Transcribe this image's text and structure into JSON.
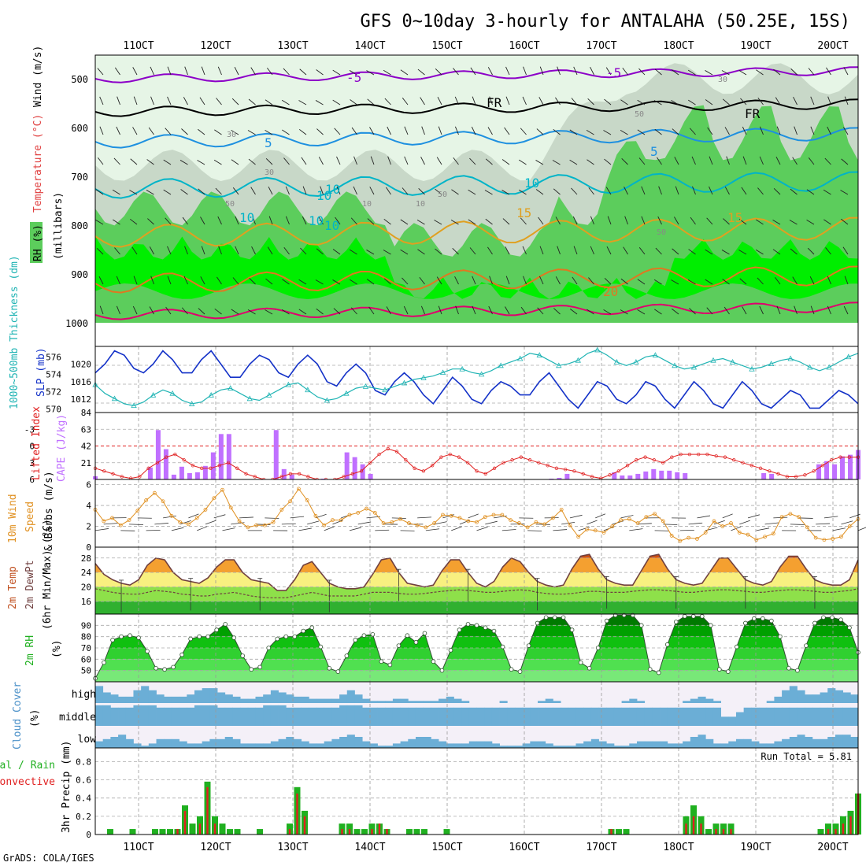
{
  "title": "GFS 0~10day 3-hourly for ANTALAHA (50.25E, 15S)",
  "footer": "GrADS: COLA/IGES",
  "run_total": "Run Total = 5.81",
  "date_ticks": [
    "11OCT",
    "12OCT",
    "13OCT",
    "14OCT",
    "15OCT",
    "16OCT",
    "17OCT",
    "18OCT",
    "19OCT",
    "20OCT"
  ],
  "colors": {
    "rh_light": "#e6f5e6",
    "rh_mid": "#c8d8c8",
    "rh_green": "#5ccd5c",
    "rh_bright": "#00ee00",
    "temp_m5": "#8c00c8",
    "temp_0": "#000000",
    "temp_5": "#1e90e0",
    "temp_10": "#00b4c8",
    "temp_15": "#e0a020",
    "temp_20": "#e07820",
    "temp_25": "#e0006e",
    "slp": "#1432c8",
    "thickness": "#20b4b4",
    "cape": "#c070ff",
    "lifted": "#e02020",
    "wind10m": "#e09020",
    "cloud": "#6baed6",
    "cloud_clear": "#e8e8e8",
    "precip_total": "#20b020",
    "precip_conv": "#e02020"
  },
  "panels": {
    "upper": {
      "ylabels": {
        "rh": "RH (%)",
        "temp": "Temperature (°C)",
        "wind": "Wind (m/s)",
        "unit": "(millibars)"
      },
      "pressure_ticks": [
        "500",
        "600",
        "700",
        "800",
        "900",
        "1000"
      ],
      "contour_labels": [
        "-5",
        "-5",
        "FR",
        "FR",
        "5",
        "5",
        "10",
        "10",
        "15",
        "15",
        "20",
        "30",
        "30",
        "50",
        "50",
        "10",
        "10",
        "10",
        "10",
        "30",
        "50",
        "50",
        "10",
        "10"
      ]
    },
    "thickness_slp": {
      "ylabel_left": "1000~500mb Thickness (dm)",
      "ylabel_right": "SLP (mb)",
      "left_ticks": [
        "576",
        "574",
        "572",
        "570"
      ],
      "right_ticks": [
        "1020",
        "1016",
        "1012"
      ]
    },
    "cape_li": {
      "ylabel_left": "Lifted Index",
      "ylabel_right": "CAPE (J/kg)",
      "li_ticks": [
        "-3",
        "0",
        "3",
        "6"
      ],
      "cape_ticks": [
        "84",
        "63",
        "42",
        "21"
      ]
    },
    "wind10m": {
      "ylabel": "10m Wind Speed & Barbs (m/s)",
      "ticks": [
        "6",
        "4",
        "2",
        "0"
      ]
    },
    "temp2m": {
      "ylabel": "2m Temp 2m DewPt (6hr Min/Max) (°C)",
      "ticks": [
        "28",
        "24",
        "20",
        "16"
      ]
    },
    "rh2m": {
      "ylabel": "2m RH (%)",
      "ticks": [
        "90",
        "80",
        "70",
        "60",
        "50"
      ]
    },
    "cloud": {
      "ylabel": "Cloud Cover (%)",
      "levels": [
        "high",
        "middle",
        "low"
      ]
    },
    "precip": {
      "ylabel_a": "3hr Precip (mm)",
      "ylabel_b": "Total / Rain",
      "ylabel_c": "Convective",
      "ticks": [
        "0.8",
        "0.6",
        "0.4",
        "0.2",
        "0"
      ]
    }
  },
  "chart_data": {
    "type": "meteogram",
    "time_start": "10OCT 12Z",
    "time_step_hours": 3,
    "slp_mb": [
      1018,
      1020,
      1023,
      1022,
      1019,
      1018,
      1020,
      1023,
      1021,
      1018,
      1018,
      1021,
      1023,
      1020,
      1017,
      1017,
      1020,
      1022,
      1021,
      1018,
      1017,
      1020,
      1022,
      1020,
      1016,
      1015,
      1018,
      1020,
      1018,
      1014,
      1013,
      1016,
      1018,
      1016,
      1013,
      1011,
      1014,
      1017,
      1015,
      1012,
      1011,
      1014,
      1016,
      1015,
      1013,
      1013,
      1016,
      1018,
      1015,
      1012,
      1010,
      1013,
      1016,
      1015,
      1012,
      1011,
      1013,
      1016,
      1015,
      1012,
      1010,
      1013,
      1016,
      1014,
      1011,
      1010,
      1013,
      1016,
      1014,
      1011,
      1010,
      1012,
      1014,
      1013,
      1010,
      1010,
      1012,
      1014,
      1013,
      1011
    ],
    "thickness_dm": [
      572.8,
      571.8,
      571.2,
      570.6,
      570.4,
      570.8,
      571.6,
      572.2,
      571.8,
      571.0,
      570.6,
      570.8,
      571.6,
      572.2,
      572.4,
      571.8,
      571.2,
      571.0,
      571.6,
      572.2,
      572.8,
      573.0,
      572.2,
      571.4,
      571.0,
      571.2,
      571.8,
      572.4,
      572.6,
      572.4,
      572.2,
      572.6,
      573.0,
      573.4,
      573.6,
      573.8,
      574.2,
      574.6,
      574.6,
      574.2,
      574.0,
      574.4,
      575.0,
      575.4,
      575.8,
      576.4,
      576.2,
      575.6,
      575.0,
      575.2,
      575.6,
      576.4,
      576.8,
      576.2,
      575.4,
      575.0,
      575.4,
      576.0,
      576.2,
      575.6,
      575.0,
      574.6,
      574.8,
      575.2,
      575.6,
      575.8,
      575.4,
      575.0,
      574.6,
      574.8,
      575.2,
      575.6,
      575.8,
      575.4,
      574.8,
      574.4,
      574.8,
      575.4,
      576.0,
      576.4
    ],
    "cape_jkg": [
      4,
      0,
      0,
      0,
      0,
      0,
      0,
      15,
      62,
      38,
      6,
      16,
      8,
      9,
      17,
      34,
      57,
      57,
      0,
      0,
      0,
      0,
      0,
      62,
      13,
      6,
      0,
      0,
      0,
      1,
      0,
      0,
      34,
      28,
      19,
      7,
      0,
      0,
      0,
      0,
      0,
      0,
      0,
      0,
      0,
      0,
      0,
      0,
      0,
      0,
      0,
      0,
      0,
      0,
      0,
      0,
      0,
      0,
      1,
      2,
      7,
      0,
      0,
      0,
      0,
      0,
      9,
      5,
      5,
      7,
      10,
      13,
      11,
      11,
      9,
      8,
      0,
      0,
      0,
      0,
      0,
      0,
      0,
      0,
      0,
      8,
      7,
      0,
      0,
      0,
      0,
      0,
      19,
      23,
      19,
      29,
      31,
      37
    ],
    "lifted_index": [
      4,
      4.5,
      5,
      5.5,
      5.8,
      5.5,
      4,
      3,
      2,
      1.5,
      2.5,
      3.5,
      4,
      4,
      3.5,
      3,
      4,
      5,
      5.5,
      6,
      6,
      5.5,
      5,
      5,
      5.5,
      6,
      6,
      6,
      5.5,
      5,
      4.5,
      3,
      1.5,
      0.5,
      1,
      2.5,
      4,
      4.5,
      3.5,
      2,
      1.5,
      2,
      3,
      4.5,
      5,
      4,
      3,
      2.5,
      2,
      2.5,
      3,
      3.5,
      4,
      4.2,
      4.5,
      5,
      5.5,
      5.8,
      5.2,
      4.5,
      3.5,
      2.5,
      2,
      2.5,
      3,
      2,
      1.5,
      1.5,
      1.5,
      1.5,
      1.8,
      2,
      2.5,
      3,
      3.5,
      4,
      4.5,
      5,
      5.5,
      5.5,
      5.2,
      4.5,
      3.5,
      2.5,
      2,
      2,
      2
    ],
    "wind10m_ms": [
      3.6,
      2.5,
      2.8,
      2.1,
      2.6,
      3.5,
      4.5,
      5.2,
      4.4,
      3.0,
      2.4,
      2.2,
      2.8,
      3.6,
      4.7,
      5.5,
      3.8,
      2.5,
      1.9,
      2.1,
      2.1,
      2.4,
      3.6,
      4.4,
      5.6,
      4.5,
      3.0,
      2.1,
      2.6,
      2.6,
      3.1,
      3.3,
      3.7,
      3.3,
      2.3,
      2.4,
      2.7,
      2.3,
      2.1,
      1.9,
      2.3,
      3.1,
      3.0,
      2.8,
      2.5,
      2.4,
      2.9,
      3.1,
      3.1,
      2.6,
      2.3,
      1.9,
      2.4,
      2.2,
      2.8,
      3.6,
      2.1,
      1.0,
      1.7,
      1.6,
      1.4,
      2.0,
      2.6,
      2.7,
      2.3,
      2.9,
      3.2,
      2.5,
      1.1,
      0.6,
      0.9,
      0.8,
      1.4,
      2.5,
      2.0,
      2.3,
      1.4,
      1.2,
      0.7,
      1.0,
      1.3,
      2.9,
      3.2,
      2.9,
      1.9,
      0.9,
      0.7,
      0.8,
      1.0,
      2.0,
      2.7
    ],
    "temp2m_c": [
      26.5,
      23.5,
      22,
      21,
      20.5,
      22,
      26,
      28,
      27.5,
      24,
      22,
      21.5,
      21,
      22.5,
      25.5,
      27.5,
      27.5,
      24,
      22,
      21.5,
      21,
      19,
      19,
      22,
      26,
      27,
      24,
      21,
      20,
      19.5,
      19.5,
      20,
      23.5,
      27.5,
      28,
      24,
      21,
      20.5,
      20,
      20.5,
      24.5,
      27.5,
      27.5,
      24,
      21,
      20,
      21.5,
      25.5,
      28,
      27,
      24,
      21.5,
      20.5,
      20,
      20.5,
      25,
      28.5,
      29,
      25,
      22,
      21,
      20.5,
      20.5,
      24.5,
      28.5,
      29,
      25,
      22,
      21,
      20.5,
      21,
      24.5,
      28,
      28,
      25,
      22,
      21,
      20.5,
      21.5,
      25.5,
      28.5,
      28.5,
      25,
      22,
      21,
      20.5,
      20.5,
      22,
      27.5
    ],
    "dewpt2m_c": [
      19.5,
      19,
      18.5,
      18.2,
      18,
      18,
      18.5,
      19,
      18.8,
      18.5,
      18,
      17.8,
      17.5,
      17.5,
      18,
      18.2,
      18.5,
      18,
      17.5,
      17.2,
      17,
      17,
      17,
      17.5,
      18,
      18.5,
      18,
      17.5,
      17.5,
      17.5,
      17.5,
      18,
      18.5,
      18.5,
      18.5,
      18.2,
      18,
      18,
      18.2,
      18.5,
      18.8,
      19,
      19.2,
      19,
      18.8,
      18.5,
      18.5,
      18.8,
      19,
      19.2,
      19,
      18.5,
      18.2,
      18,
      18,
      18.2,
      18.5,
      18.8,
      18.8,
      18.5,
      18.5,
      18.5,
      18.8,
      19,
      19.2,
      19.2,
      19,
      18.8,
      18.5,
      18.5,
      18.8,
      19,
      19.2,
      19.2,
      19,
      18.8,
      18.5,
      18.5,
      18.8,
      19,
      19.2,
      19.2,
      19,
      18.8,
      18.5,
      18.5,
      18.8,
      19,
      19.5
    ],
    "rh2m_pct": [
      43,
      57,
      77,
      80,
      81,
      79,
      67,
      52,
      51,
      53,
      64,
      78,
      80,
      80,
      86,
      91,
      79,
      63,
      51,
      53,
      70,
      78,
      80,
      80,
      85,
      88,
      71,
      52,
      49,
      63,
      77,
      81,
      82,
      58,
      55,
      72,
      81,
      75,
      83,
      58,
      50,
      68,
      86,
      91,
      90,
      88,
      85,
      71,
      51,
      49,
      72,
      92,
      97,
      97,
      97,
      86,
      57,
      52,
      70,
      94,
      99,
      99,
      99,
      90,
      51,
      48,
      73,
      93,
      98,
      98,
      98,
      90,
      51,
      49,
      71,
      92,
      96,
      96,
      94,
      80,
      52,
      50,
      72,
      92,
      97,
      97,
      95,
      88,
      66
    ],
    "precip_total_mm": [
      0,
      0,
      0.06,
      0,
      0,
      0.06,
      0,
      0,
      0.06,
      0.06,
      0.06,
      0.06,
      0.32,
      0.12,
      0.2,
      0.58,
      0.2,
      0.12,
      0.06,
      0.06,
      0,
      0,
      0.06,
      0,
      0,
      0,
      0.12,
      0.52,
      0.26,
      0,
      0,
      0,
      0,
      0.12,
      0.12,
      0.06,
      0.06,
      0.12,
      0.12,
      0.06,
      0,
      0,
      0.06,
      0.06,
      0.06,
      0,
      0,
      0.06,
      0,
      0,
      0,
      0,
      0,
      0,
      0,
      0,
      0,
      0,
      0,
      0,
      0,
      0,
      0,
      0,
      0,
      0,
      0,
      0,
      0,
      0.06,
      0.06,
      0.06,
      0,
      0,
      0,
      0,
      0,
      0,
      0,
      0.2,
      0.32,
      0.2,
      0.06,
      0.12,
      0.12,
      0.12,
      0,
      0,
      0,
      0,
      0,
      0,
      0,
      0,
      0,
      0,
      0,
      0.06,
      0.12,
      0.12,
      0.2,
      0.26,
      0.45
    ],
    "precip_conv_mm": [
      0,
      0,
      0,
      0,
      0,
      0,
      0,
      0,
      0,
      0,
      0,
      0.06,
      0.26,
      0,
      0.12,
      0.52,
      0.12,
      0,
      0,
      0,
      0,
      0,
      0,
      0,
      0,
      0,
      0.06,
      0.45,
      0.2,
      0,
      0,
      0,
      0,
      0.06,
      0.06,
      0,
      0,
      0.06,
      0.12,
      0.06,
      0,
      0,
      0,
      0,
      0,
      0,
      0,
      0,
      0,
      0,
      0,
      0,
      0,
      0,
      0,
      0,
      0,
      0,
      0,
      0,
      0,
      0,
      0,
      0,
      0,
      0,
      0,
      0,
      0,
      0.06,
      0,
      0,
      0,
      0,
      0,
      0,
      0,
      0,
      0,
      0.12,
      0.2,
      0.12,
      0,
      0.06,
      0.06,
      0.06,
      0,
      0,
      0,
      0,
      0,
      0,
      0,
      0,
      0,
      0,
      0,
      0,
      0.06,
      0.06,
      0.12,
      0.2,
      0.45
    ],
    "cloud_high_pct": [
      80,
      50,
      40,
      30,
      30,
      60,
      80,
      60,
      40,
      30,
      30,
      30,
      40,
      60,
      70,
      70,
      50,
      40,
      30,
      20,
      20,
      30,
      40,
      60,
      50,
      40,
      30,
      30,
      20,
      20,
      20,
      20,
      40,
      60,
      40,
      20,
      10,
      10,
      10,
      20,
      20,
      10,
      10,
      10,
      10,
      20,
      30,
      20,
      10,
      0,
      0,
      0,
      0,
      10,
      0,
      0,
      0,
      0,
      10,
      20,
      10,
      0,
      0,
      0,
      0,
      0,
      0,
      0,
      0,
      10,
      20,
      10,
      0,
      0,
      0,
      0,
      0,
      10,
      20,
      30,
      20,
      10,
      0,
      0,
      0,
      0,
      0,
      0,
      10,
      30,
      60,
      80,
      60,
      40,
      40,
      50,
      70,
      60,
      50,
      40
    ],
    "cloud_middle_pct": [
      90,
      90,
      80,
      80,
      80,
      90,
      90,
      90,
      80,
      80,
      80,
      80,
      80,
      90,
      90,
      90,
      80,
      80,
      80,
      80,
      80,
      80,
      90,
      90,
      90,
      80,
      80,
      80,
      80,
      80,
      80,
      80,
      90,
      90,
      90,
      80,
      80,
      80,
      80,
      80,
      80,
      80,
      80,
      80,
      80,
      80,
      80,
      80,
      80,
      80,
      80,
      80,
      80,
      80,
      80,
      80,
      80,
      80,
      80,
      80,
      80,
      80,
      80,
      80,
      80,
      80,
      80,
      80,
      80,
      80,
      80,
      80,
      80,
      80,
      80,
      80,
      80,
      80,
      80,
      80,
      80,
      80,
      40,
      40,
      60,
      80,
      80,
      80,
      80,
      80,
      80,
      80,
      80,
      80,
      80,
      80,
      80,
      80,
      80,
      80
    ],
    "cloud_low_pct": [
      30,
      40,
      50,
      60,
      40,
      20,
      10,
      20,
      40,
      40,
      40,
      30,
      20,
      20,
      30,
      40,
      40,
      50,
      40,
      20,
      20,
      20,
      20,
      30,
      40,
      50,
      40,
      30,
      20,
      20,
      30,
      40,
      50,
      60,
      50,
      30,
      20,
      10,
      10,
      20,
      30,
      40,
      50,
      50,
      40,
      30,
      20,
      20,
      20,
      30,
      30,
      30,
      20,
      10,
      10,
      10,
      20,
      30,
      30,
      20,
      10,
      10,
      10,
      20,
      30,
      40,
      30,
      20,
      10,
      10,
      20,
      30,
      30,
      30,
      30,
      20,
      20,
      30,
      50,
      60,
      40,
      20,
      20,
      30,
      40,
      40,
      30,
      20,
      20,
      30,
      40,
      50,
      60,
      50,
      40,
      40,
      50,
      60,
      60,
      50
    ]
  }
}
